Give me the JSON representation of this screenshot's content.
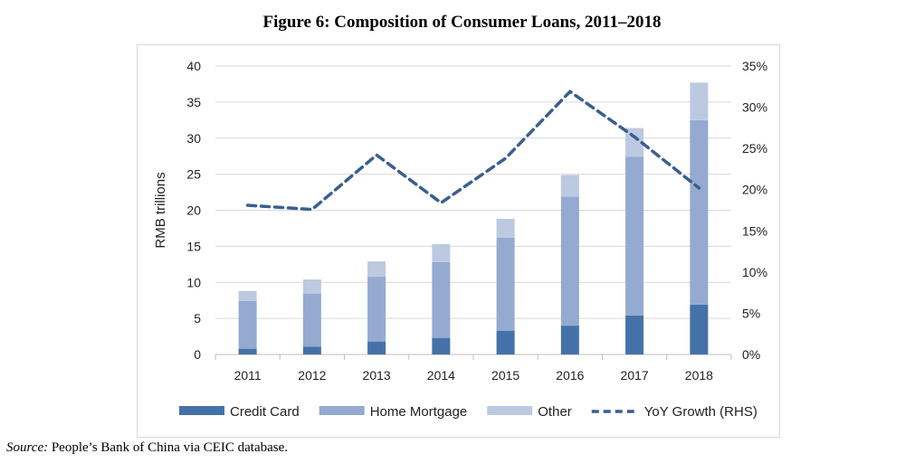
{
  "chart_data": {
    "type": "bar",
    "title": "Figure 6: Composition of Consumer Loans, 2011–2018",
    "ylabel": "RMB trillions",
    "ylim": [
      0,
      40
    ],
    "y_ticks": [
      "0",
      "5",
      "10",
      "15",
      "20",
      "25",
      "30",
      "35",
      "40"
    ],
    "y2lim": [
      0,
      35
    ],
    "y2_ticks": [
      "0%",
      "5%",
      "10%",
      "15%",
      "20%",
      "25%",
      "30%",
      "35%"
    ],
    "categories": [
      "2011",
      "2012",
      "2013",
      "2014",
      "2015",
      "2016",
      "2017",
      "2018"
    ],
    "stacked": true,
    "series": [
      {
        "name": "Credit Card",
        "values": [
          0.8,
          1.1,
          1.8,
          2.3,
          3.3,
          4.0,
          5.4,
          6.9
        ],
        "color": "#4472a8"
      },
      {
        "name": "Home Mortgage",
        "values": [
          6.6,
          7.3,
          9.0,
          10.5,
          12.9,
          17.9,
          22.0,
          25.6
        ],
        "color": "#95aad0"
      },
      {
        "name": "Other",
        "values": [
          1.4,
          2.0,
          2.1,
          2.5,
          2.6,
          3.0,
          4.0,
          5.2
        ],
        "color": "#bcc9e1"
      }
    ],
    "line_series": {
      "name": "YoY Growth (RHS)",
      "axis": "right",
      "unit": "%",
      "values": [
        18.1,
        17.6,
        24.2,
        18.4,
        23.8,
        31.9,
        26.4,
        20.2
      ],
      "color": "#3a5f8f"
    },
    "grid": true,
    "legend": "bottom"
  },
  "source": {
    "label": "Source:",
    "text": " People’s Bank of China via CEIC database."
  }
}
